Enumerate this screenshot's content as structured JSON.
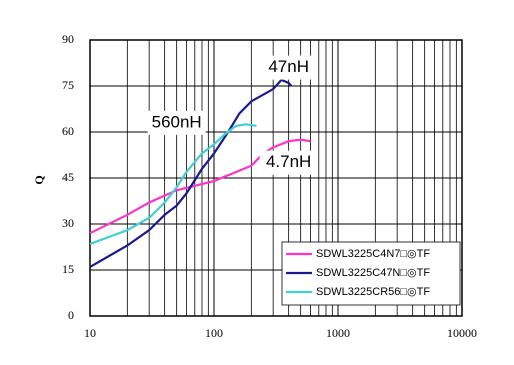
{
  "chart_data": {
    "type": "line",
    "y_label": "Q",
    "xscale": "log",
    "xlim": [
      10,
      10000
    ],
    "xticks": [
      10,
      100,
      1000,
      10000
    ],
    "x_minor_grid": [
      20,
      30,
      40,
      50,
      60,
      70,
      80,
      90,
      200,
      300,
      400,
      500,
      600,
      700,
      800,
      900,
      2000,
      3000,
      4000,
      5000,
      6000,
      7000,
      8000,
      9000
    ],
    "ylim": [
      0,
      90
    ],
    "yticks": [
      0,
      15,
      30,
      45,
      60,
      75,
      90
    ],
    "grid": true,
    "legend": "lower right",
    "annotations": [
      {
        "text": "47nH",
        "x": 400,
        "y": 81
      },
      {
        "text": "560nH",
        "x": 50,
        "y": 63
      },
      {
        "text": "4.7nH",
        "x": 400,
        "y": 50
      }
    ],
    "series": [
      {
        "name": "SDWL3225C4N7□◎TF",
        "color": "#ff33cc",
        "x": [
          10,
          20,
          30,
          50,
          100,
          200,
          250,
          300,
          400,
          500,
          600
        ],
        "values": [
          27,
          33,
          37,
          41,
          44,
          49,
          53,
          55,
          57,
          57.5,
          57
        ]
      },
      {
        "name": "SDWL3225C47N□◎TF",
        "color": "#1a1a8c",
        "x": [
          10,
          20,
          30,
          40,
          50,
          60,
          80,
          100,
          130,
          160,
          200,
          300,
          350,
          400,
          420
        ],
        "values": [
          16,
          23,
          28,
          33,
          36,
          40,
          48,
          53,
          60,
          66,
          70,
          74,
          77,
          76,
          75
        ]
      },
      {
        "name": "SDWL3225CR56□◎TF",
        "color": "#40d0d0",
        "x": [
          10,
          20,
          30,
          40,
          50,
          60,
          80,
          100,
          120,
          150,
          180,
          220
        ],
        "values": [
          23.5,
          28,
          32,
          37,
          42,
          47,
          53,
          56,
          59,
          62,
          62.5,
          62
        ]
      }
    ]
  }
}
